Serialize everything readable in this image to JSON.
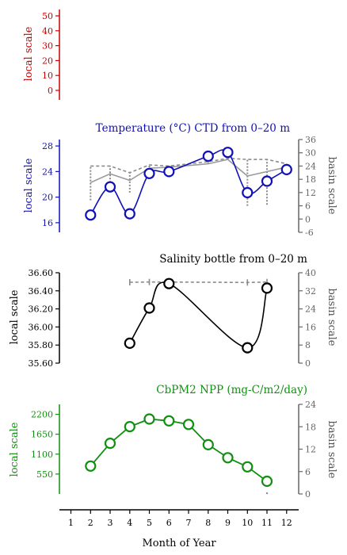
{
  "chart_data": [
    {
      "type": "line",
      "panel": "top",
      "title": "",
      "ylabel_left": "local scale",
      "ylim": [
        0,
        50
      ],
      "yticks": [
        "50",
        "40",
        "30",
        "20",
        "10",
        "0"
      ],
      "color": "#cc0000",
      "series": []
    },
    {
      "type": "line",
      "panel": "temperature",
      "title": "Temperature (°C) CTD from 0–20 m",
      "ylabel_left": "local scale",
      "ylabel_right": "basin scale",
      "ylim_left": [
        14.5,
        29.5
      ],
      "yticks_left": [
        "28",
        "24",
        "20",
        "16"
      ],
      "ylim_right": [
        -6,
        36
      ],
      "yticks_right": [
        "36",
        "30",
        "24",
        "18",
        "12",
        "6",
        "0",
        "-6"
      ],
      "color": "#1010b8",
      "local": {
        "x": [
          2,
          3,
          4,
          5,
          6,
          8,
          9,
          10,
          11,
          12
        ],
        "y": [
          17.2,
          21.6,
          17.4,
          23.7,
          24.0,
          26.4,
          27.0,
          20.7,
          22.5,
          24.3
        ]
      },
      "basin_mean": {
        "x": [
          2,
          3,
          4,
          5,
          6,
          8,
          9,
          10,
          11,
          12
        ],
        "y": [
          16.5,
          20.5,
          17.5,
          23.0,
          23.5,
          25.0,
          27.0,
          19.5,
          21.5,
          23.5
        ]
      },
      "basin_range_low": {
        "x": [
          2,
          3,
          4,
          5,
          6,
          8,
          9,
          10,
          11,
          12
        ],
        "y": [
          8.5,
          16.5,
          12.0,
          22.0,
          23.0,
          25.0,
          27.5,
          6.0,
          6.5,
          21.5
        ]
      },
      "basin_range_high": {
        "x": [
          2,
          3,
          4,
          5,
          6,
          8,
          9,
          10,
          11,
          12
        ],
        "y": [
          24.0,
          24.0,
          21.0,
          24.5,
          24.0,
          26.0,
          27.5,
          27.0,
          27.0,
          25.0
        ]
      }
    },
    {
      "type": "line",
      "panel": "salinity",
      "title": "Salinity bottle from 0–20 m",
      "ylabel_left": "local scale",
      "ylabel_right": "basin scale",
      "ylim_left": [
        35.6,
        36.6
      ],
      "yticks_left": [
        "36.60",
        "36.40",
        "36.20",
        "36.00",
        "35.80",
        "35.60"
      ],
      "ylim_right": [
        0,
        40
      ],
      "yticks_right": [
        "40",
        "32",
        "24",
        "16",
        "8",
        "0"
      ],
      "color": "#000000",
      "local": {
        "x": [
          4,
          5,
          6,
          10,
          11
        ],
        "y": [
          35.82,
          36.21,
          36.48,
          35.77,
          36.43
        ]
      },
      "basin_mean": {
        "x": [
          4,
          5,
          6,
          10,
          11
        ],
        "y": [
          35.8,
          35.9,
          35.9,
          35.7,
          35.9
        ]
      }
    },
    {
      "type": "line",
      "panel": "npp",
      "title": "CbPM2 NPP (mg-C/m2/day)",
      "ylabel_left": "local scale",
      "ylabel_right": "basin scale",
      "ylim_left": [
        0,
        2475
      ],
      "yticks_left": [
        "2200",
        "1650",
        "1100",
        "550"
      ],
      "ylim_right": [
        0,
        24
      ],
      "yticks_right": [
        "24",
        "18",
        "12",
        "6",
        "0"
      ],
      "color": "#109010",
      "local": {
        "x": [
          2,
          3,
          4,
          5,
          6,
          7,
          8,
          9,
          10,
          11
        ],
        "y": [
          770,
          1400,
          1860,
          2070,
          2020,
          1920,
          1360,
          1000,
          750,
          350
        ]
      },
      "basin_mean": {
        "x": [
          11
        ],
        "y": [
          0.2
        ]
      }
    }
  ],
  "xaxis": {
    "label": "Month of Year",
    "ticks": [
      "1",
      "2",
      "3",
      "4",
      "5",
      "6",
      "7",
      "8",
      "9",
      "10",
      "11",
      "12"
    ]
  }
}
